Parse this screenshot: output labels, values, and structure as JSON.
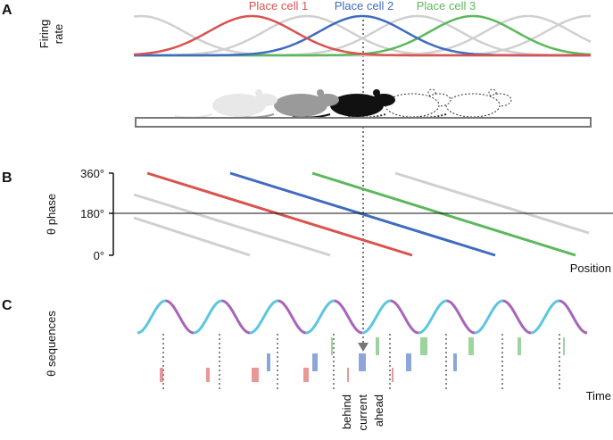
{
  "panel_a": {
    "label": "A",
    "y_label_lines": [
      "Firing",
      "rate"
    ],
    "cells": [
      "Place cell 1",
      "Place cell 2",
      "Place cell 3"
    ]
  },
  "panel_b": {
    "label": "B",
    "y_label": "θ phase",
    "ticks": [
      "360°",
      "180°",
      "0°"
    ],
    "x_label": "Position"
  },
  "panel_c": {
    "label": "C",
    "y_label": "θ sequences",
    "x_label": "Time",
    "markers": [
      "behind",
      "current",
      "ahead"
    ]
  }
}
